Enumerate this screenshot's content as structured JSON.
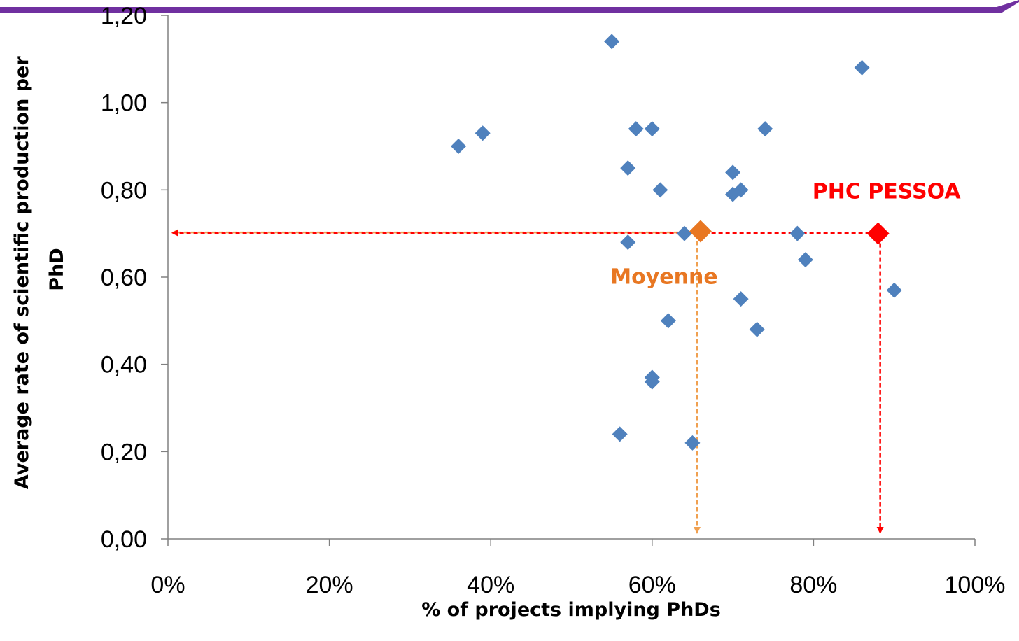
{
  "chart_data": {
    "type": "scatter",
    "title": "",
    "xlabel": "% of projects implying PhDs",
    "ylabel": "Average rate of scientific production per PhD",
    "xlim": [
      0,
      100
    ],
    "ylim": [
      0,
      1.2
    ],
    "x_ticks": [
      0,
      20,
      40,
      60,
      80,
      100
    ],
    "x_tick_labels": [
      "0%",
      "20%",
      "40%",
      "60%",
      "80%",
      "100%"
    ],
    "y_ticks": [
      0,
      0.2,
      0.4,
      0.6,
      0.8,
      1.0,
      1.2
    ],
    "y_tick_labels": [
      "0,00",
      "0,20",
      "0,40",
      "0,60",
      "0,80",
      "1,00",
      "1,20"
    ],
    "grid": false,
    "legend": "none",
    "series": [
      {
        "color": "#4f81bd",
        "points": [
          {
            "x": 36,
            "y": 0.9
          },
          {
            "x": 39,
            "y": 0.93
          },
          {
            "x": 55,
            "y": 1.14
          },
          {
            "x": 56,
            "y": 0.24
          },
          {
            "x": 57,
            "y": 0.85
          },
          {
            "x": 57,
            "y": 0.68
          },
          {
            "x": 58,
            "y": 0.94
          },
          {
            "x": 60,
            "y": 0.94
          },
          {
            "x": 60,
            "y": 0.37
          },
          {
            "x": 60,
            "y": 0.36
          },
          {
            "x": 61,
            "y": 0.8
          },
          {
            "x": 62,
            "y": 0.5
          },
          {
            "x": 64,
            "y": 0.7
          },
          {
            "x": 65,
            "y": 0.22
          },
          {
            "x": 70,
            "y": 0.84
          },
          {
            "x": 70,
            "y": 0.79
          },
          {
            "x": 71,
            "y": 0.8
          },
          {
            "x": 71,
            "y": 0.55
          },
          {
            "x": 73,
            "y": 0.48
          },
          {
            "x": 74,
            "y": 0.94
          },
          {
            "x": 78,
            "y": 0.7
          },
          {
            "x": 79,
            "y": 0.64
          },
          {
            "x": 86,
            "y": 1.08
          },
          {
            "x": 90,
            "y": 0.57
          }
        ]
      }
    ],
    "highlights": [
      {
        "label": "Moyenne",
        "x": 66,
        "y": 0.705,
        "color": "#e87722",
        "line_color": "#f0a050"
      },
      {
        "label": "PHC PESSOA",
        "x": 88,
        "y": 0.7,
        "color": "#ff0000",
        "line_color": "#ff0000"
      }
    ]
  },
  "colors": {
    "banner": "#7030a0",
    "axis": "#808080"
  }
}
